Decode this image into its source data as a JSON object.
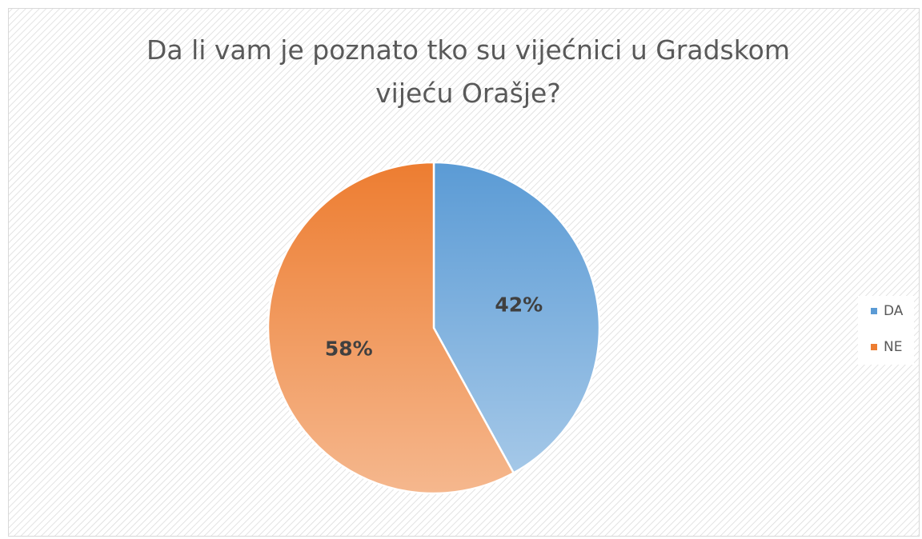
{
  "chart_data": {
    "type": "pie",
    "title": "Da li vam je poznato tko su vijećnici u Gradskom vijeću Orašje?",
    "categories": [
      "DA",
      "NE"
    ],
    "values": [
      42,
      58
    ],
    "value_labels": [
      "42%",
      "58%"
    ],
    "colors": [
      "#5b9bd5",
      "#ed7d31"
    ],
    "legend": "right"
  }
}
